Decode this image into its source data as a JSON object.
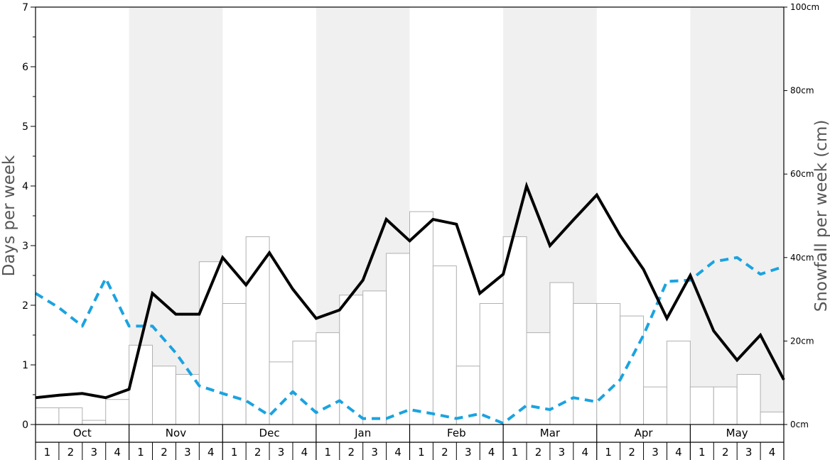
{
  "chart_data": {
    "type": "bar+line",
    "ylabel_left": "Days per week",
    "ylabel_right": "Snowfall per week (cm)",
    "ylim_left": [
      0,
      7
    ],
    "ylim_right": [
      0,
      100
    ],
    "left_ticks": [
      "0",
      "1",
      "2",
      "3",
      "4",
      "5",
      "6",
      "7"
    ],
    "right_ticks": [
      {
        "value": 0,
        "label": "0cm"
      },
      {
        "value": 20,
        "label": "20cm"
      },
      {
        "value": 40,
        "label": "40cm"
      },
      {
        "value": 60,
        "label": "60cm"
      },
      {
        "value": 80,
        "label": "80cm"
      },
      {
        "value": 100,
        "label": "100cm"
      }
    ],
    "months": [
      "Oct",
      "Nov",
      "Dec",
      "Jan",
      "Feb",
      "Mar",
      "Apr",
      "May"
    ],
    "week_labels": [
      "1",
      "2",
      "3",
      "4"
    ],
    "shaded_months": [
      "Nov",
      "Jan",
      "Mar",
      "May"
    ],
    "colors": {
      "shade": "#f0f0f0",
      "bar_fill": "#ffffff",
      "bar_stroke": "#b0b0b0",
      "solid_line": "#000000",
      "dashed_line": "#1aa3e0",
      "axis_label": "#555555"
    },
    "snowfall_cm": [
      4,
      4,
      1,
      6,
      19,
      14,
      12,
      39,
      29,
      45,
      15,
      20,
      22,
      31,
      32,
      41,
      51,
      38,
      14,
      29,
      45,
      22,
      34,
      29,
      29,
      26,
      9,
      20,
      9,
      9,
      12,
      3
    ],
    "solid_days": [
      0.45,
      0.49,
      0.52,
      0.45,
      0.59,
      2.2,
      1.85,
      1.85,
      2.8,
      2.34,
      2.88,
      2.27,
      1.78,
      1.92,
      2.42,
      3.44,
      3.08,
      3.44,
      3.36,
      2.2,
      2.52,
      4.0,
      3.0,
      3.43,
      3.85,
      3.17,
      2.6,
      1.78,
      2.5,
      1.57,
      1.08,
      1.5,
      0.75
    ],
    "dashed_days": [
      2.2,
      1.96,
      1.65,
      2.45,
      1.65,
      1.65,
      1.2,
      0.65,
      0.52,
      0.4,
      0.15,
      0.55,
      0.2,
      0.4,
      0.1,
      0.1,
      0.25,
      0.18,
      0.1,
      0.18,
      0.02,
      0.32,
      0.25,
      0.45,
      0.38,
      0.75,
      1.5,
      2.4,
      2.42,
      2.73,
      2.8,
      2.52,
      2.65
    ]
  }
}
